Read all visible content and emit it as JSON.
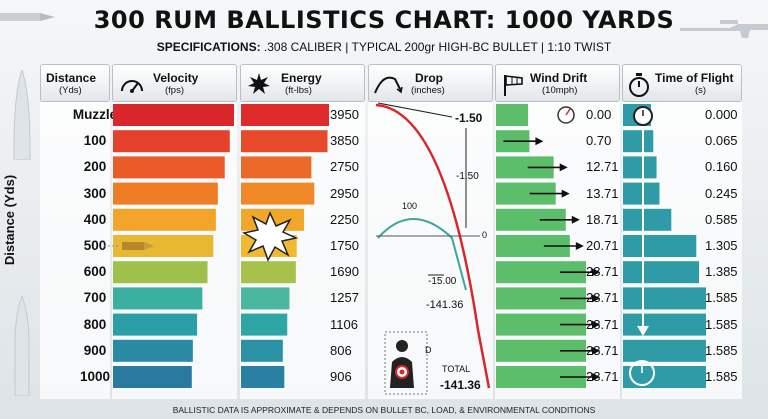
{
  "title": "300 RUM BALLISTICS CHART: 1000 YARDS",
  "subtitle": {
    "label": "SPECIFICATIONS:",
    "text": ".308 CALIBER | TYPICAL 200gr HIGH-BC BULLET | 1:10 TWIST"
  },
  "footnote": "BALLISTIC DATA IS APPROXIMATE & DEPENDS ON BULLET BC, LOAD, & ENVIRONMENTAL CONDITIONS",
  "y_axis_title": "Distance (Yds)",
  "headers": {
    "distance": {
      "title": "Distance",
      "unit": "(Yds)"
    },
    "velocity": {
      "title": "Velocity",
      "unit": "(fps)",
      "icon": "speedometer-icon"
    },
    "energy": {
      "title": "Energy",
      "unit": "(ft-lbs)",
      "icon": "burst-icon"
    },
    "drop": {
      "title": "Drop",
      "unit": "(inches)",
      "icon": "trajectory-icon"
    },
    "wind": {
      "title": "Wind Drift",
      "unit": "(10mph)",
      "icon": "windsock-icon"
    },
    "time": {
      "title": "Time of Flight",
      "unit": "(s)",
      "icon": "stopwatch-icon"
    }
  },
  "drop_annotations": {
    "top_value": "-1.50",
    "mid_value": "-1.50",
    "apex_label": "100",
    "zero_label": "0",
    "v15": "-15.00",
    "v141": "-141.36",
    "total_label": "TOTAL",
    "total_value": "-141.36",
    "d_label": "D"
  },
  "chart_data": {
    "type": "table",
    "title": "300 RUM BALLISTICS CHART: 1000 YARDS",
    "rows": [
      "Muzzle",
      "100",
      "200",
      "300",
      "400",
      "500",
      "600",
      "700",
      "800",
      "900",
      "1000"
    ],
    "velocity_fps": [
      "3060",
      "2900",
      "2710",
      "2450",
      "2375",
      "2280",
      "2060",
      "1865",
      "1665",
      "1505",
      "1465"
    ],
    "energy_ftlbs": [
      "3950",
      "3850",
      "2750",
      "2950",
      "2250",
      "1750",
      "1690",
      "1257",
      "1106",
      "806",
      "906"
    ],
    "wind_drift": [
      "0.00",
      "0.70",
      "12.71",
      "13.71",
      "18.71",
      "20.71",
      "28.71",
      "28.71",
      "28.71",
      "28.71",
      "28.71"
    ],
    "time_of_flight": [
      "0.000",
      "0.065",
      "0.160",
      "0.245",
      "0.585",
      "1.305",
      "1.385",
      "1.585",
      "1.585",
      "1.585",
      "1.585"
    ],
    "drop_inches": [
      -1.5,
      -15.0,
      -141.36
    ],
    "colors": {
      "velocity": [
        "#d9262b",
        "#e4402b",
        "#ea5b29",
        "#ef7d26",
        "#f2a52a",
        "#e8b832",
        "#9fc04a",
        "#3ab0a0",
        "#2a9ea9",
        "#2a8aa6",
        "#2a7aa0"
      ],
      "energy": [
        "#e02b2b",
        "#e64a2a",
        "#ec6a29",
        "#f08a28",
        "#f2a62a",
        "#f0b930",
        "#a7c24a",
        "#4ab79e",
        "#2ea6a6",
        "#2b92a6",
        "#2a80a2"
      ],
      "wind": "#5cbd6b",
      "time": "#2f9ba6"
    }
  }
}
